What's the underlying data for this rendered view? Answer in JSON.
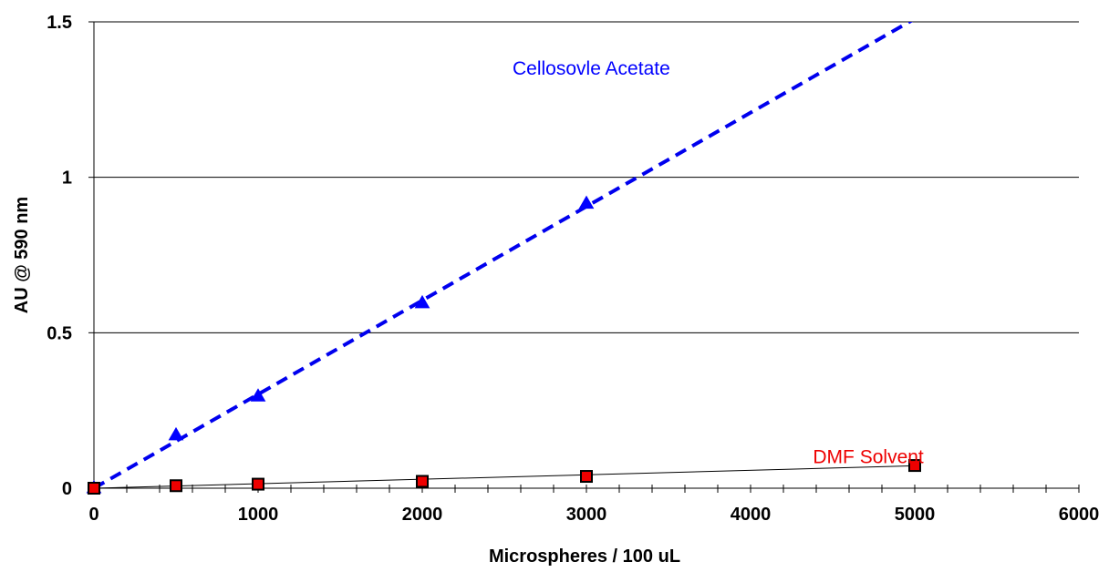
{
  "chart_data": {
    "type": "scatter",
    "title": "",
    "xlabel": "Microspheres / 100 uL",
    "ylabel": "AU @ 590 nm",
    "xlim": [
      0,
      6000
    ],
    "ylim": [
      0,
      1.5
    ],
    "x_ticks": [
      0,
      1000,
      2000,
      3000,
      4000,
      5000,
      6000
    ],
    "x_tick_labels": [
      "0",
      "1000",
      "2000",
      "3000",
      "4000",
      "5000",
      "6000"
    ],
    "x_minor_step": 200,
    "y_ticks": [
      0,
      0.5,
      1,
      1.5
    ],
    "y_tick_labels": [
      "0",
      "0.5",
      "1",
      "1.5"
    ],
    "grid": "horizontal",
    "legend": "none",
    "series": [
      {
        "name": "Cellosovle Acetate",
        "marker": "triangle",
        "color": "#0000ff",
        "x": [
          0,
          500,
          1000,
          2000,
          3000
        ],
        "y": [
          0.0,
          0.17,
          0.295,
          0.595,
          0.915
        ],
        "trendline": {
          "style": "dashed",
          "color": "#0000ee",
          "slope": 0.000302,
          "intercept": 0.0,
          "x_range": [
            0,
            6000
          ]
        }
      },
      {
        "name": "DMF Solvent",
        "marker": "square",
        "color": "#ee0000",
        "x": [
          0,
          500,
          1000,
          2000,
          3000,
          5000
        ],
        "y": [
          0.0,
          0.008,
          0.013,
          0.022,
          0.038,
          0.073
        ],
        "trendline": {
          "style": "solid",
          "color": "#000000",
          "slope": 1.44e-05,
          "intercept": 0.0,
          "x_range": [
            0,
            5000
          ]
        }
      }
    ],
    "annotations": [
      {
        "text": "Cellosovle Acetate",
        "x": 2550,
        "y": 1.33,
        "color": "#0000ff"
      },
      {
        "text": "DMF Solvent",
        "x": 4380,
        "y": 0.08,
        "color": "#ee0000"
      }
    ]
  }
}
